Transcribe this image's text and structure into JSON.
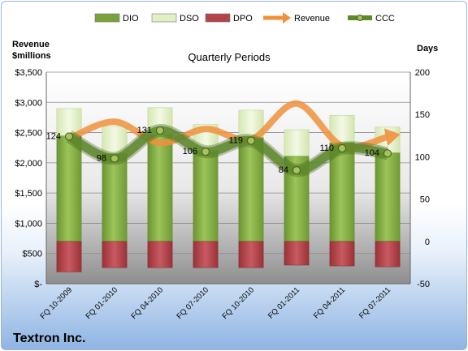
{
  "chart_data": {
    "type": "bar",
    "title": "Quarterly Periods",
    "company": "Textron Inc.",
    "ylabel_left": "Revenue\n$millions",
    "ylabel_right": "Days",
    "ylim_left": [
      0,
      3500
    ],
    "ylim_right": [
      -50,
      200
    ],
    "left_tick_labels": [
      "$-",
      "$500",
      "$1,000",
      "$1,500",
      "$2,000",
      "$2,500",
      "$3,000",
      "$3,500"
    ],
    "left_ticks": [
      0,
      500,
      1000,
      1500,
      2000,
      2500,
      3000,
      3500
    ],
    "right_ticks": [
      -50,
      0,
      50,
      100,
      150,
      200
    ],
    "categories": [
      "FQ 10-2009",
      "FQ 01-2010",
      "FQ 04-2010",
      "FQ 07-2010",
      "FQ 10-2010",
      "FQ 01-2011",
      "FQ 04-2011",
      "FQ 07-2011"
    ],
    "legend": {
      "position": "top",
      "items": [
        {
          "name": "DIO",
          "kind": "bar",
          "color": "#7aa23c"
        },
        {
          "name": "DSO",
          "kind": "bar",
          "color": "#e1efc4"
        },
        {
          "name": "DPO",
          "kind": "bar",
          "color": "#b3444a"
        },
        {
          "name": "Revenue",
          "kind": "arrow",
          "color": "#f0903c"
        },
        {
          "name": "CCC",
          "kind": "line-marker",
          "color": "#5e8a2c"
        }
      ]
    },
    "series": [
      {
        "name": "DIO",
        "axis": "right",
        "values": [
          125,
          104,
          126,
          107,
          123,
          101,
          117,
          105
        ]
      },
      {
        "name": "DSO",
        "axis": "right",
        "values": [
          32,
          32,
          32,
          31,
          32,
          31,
          32,
          30
        ]
      },
      {
        "name": "DPO",
        "axis": "right",
        "values": [
          -36,
          -31,
          -31,
          -31,
          -31,
          -28,
          -29,
          -30
        ]
      },
      {
        "name": "Revenue",
        "axis": "left",
        "values": [
          2400,
          2680,
          2330,
          2560,
          2390,
          2980,
          2280,
          2430
        ]
      },
      {
        "name": "CCC",
        "axis": "right",
        "values": [
          124,
          98,
          131,
          106,
          119,
          84,
          110,
          104
        ]
      }
    ],
    "ccc_labels": [
      "124",
      "98",
      "131",
      "106",
      "119",
      "84",
      "110",
      "104"
    ],
    "grid": true
  }
}
